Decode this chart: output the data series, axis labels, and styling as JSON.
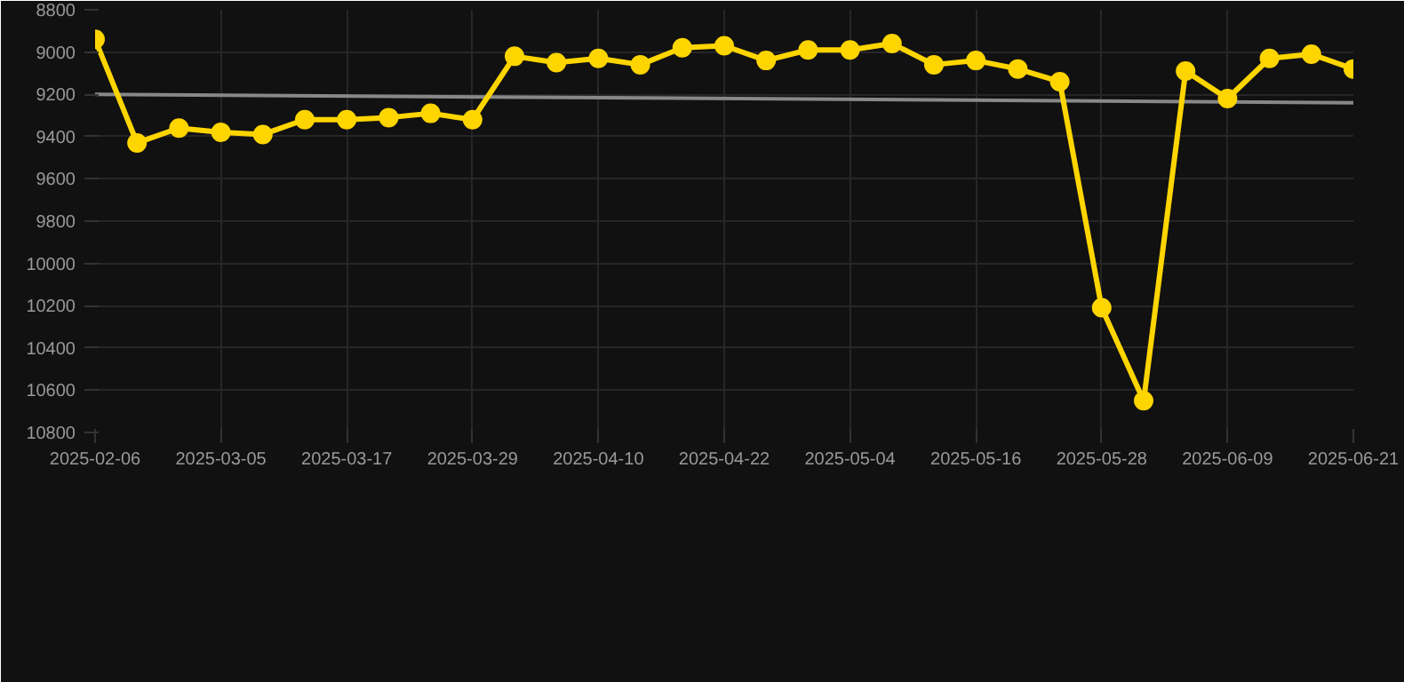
{
  "chart_data": {
    "type": "line",
    "categories": [
      "2025-02-06",
      null,
      null,
      "2025-03-05",
      null,
      null,
      "2025-03-17",
      null,
      null,
      "2025-03-29",
      null,
      null,
      "2025-04-10",
      null,
      null,
      "2025-04-22",
      null,
      null,
      "2025-05-04",
      null,
      null,
      "2025-05-16",
      null,
      null,
      "2025-05-28",
      null,
      null,
      "2025-06-09",
      null,
      null,
      "2025-06-21"
    ],
    "series": [
      {
        "color": "#ffd500",
        "marker": "circle",
        "values": [
          8940,
          9430,
          9360,
          9380,
          9390,
          9320,
          9320,
          9310,
          9290,
          9320,
          9020,
          9050,
          9030,
          9060,
          8980,
          8970,
          9040,
          8990,
          8990,
          8960,
          9060,
          9040,
          9080,
          9140,
          10210,
          10650,
          9090,
          9220,
          9030,
          9010,
          9080
        ]
      },
      {
        "type": "line",
        "color": "#888888",
        "marker": "none",
        "values": [
          9200,
          null,
          null,
          null,
          null,
          null,
          null,
          null,
          null,
          null,
          null,
          null,
          null,
          null,
          null,
          null,
          null,
          null,
          null,
          null,
          null,
          null,
          null,
          null,
          null,
          null,
          null,
          null,
          null,
          null,
          9240
        ]
      }
    ],
    "ylim": [
      10800,
      8800
    ],
    "yticks": [
      8800,
      9000,
      9200,
      9400,
      9600,
      9800,
      10000,
      10200,
      10400,
      10600,
      10800
    ],
    "grid": true
  }
}
